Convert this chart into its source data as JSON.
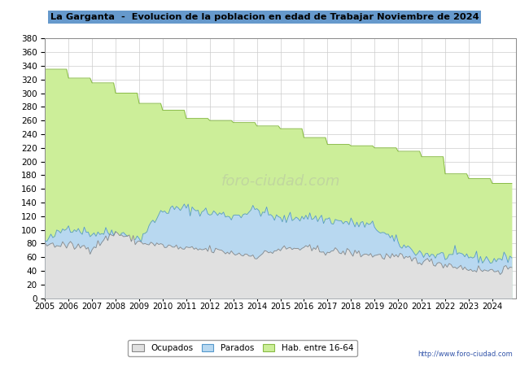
{
  "title": "La Garganta  -  Evolucion de la poblacion en edad de Trabajar Noviembre de 2024",
  "title_bg": "#6699cc",
  "url": "http://www.foro-ciudad.com",
  "hab_annual": [
    335,
    322,
    315,
    300,
    285,
    275,
    263,
    260,
    257,
    252,
    248,
    235,
    225,
    223,
    220,
    215,
    207,
    182,
    175,
    168,
    165
  ],
  "parados_annual_mean": [
    82,
    105,
    95,
    97,
    86,
    128,
    132,
    125,
    120,
    130,
    115,
    120,
    115,
    110,
    105,
    80,
    65,
    62,
    62,
    55,
    63
  ],
  "ocupados_annual_mean": [
    79,
    77,
    74,
    96,
    82,
    77,
    72,
    71,
    66,
    62,
    72,
    73,
    69,
    67,
    63,
    60,
    55,
    50,
    43,
    40,
    45
  ],
  "hab_color": "#ccee99",
  "hab_edge_color": "#88bb44",
  "parados_color": "#b8d8f0",
  "parados_edge_color": "#5599cc",
  "ocupados_color": "#e0e0e0",
  "ocupados_edge_color": "#888888",
  "ylim": [
    0,
    380
  ],
  "xlim_start": 2005,
  "xlim_end": 2025,
  "noise_seed": 42
}
